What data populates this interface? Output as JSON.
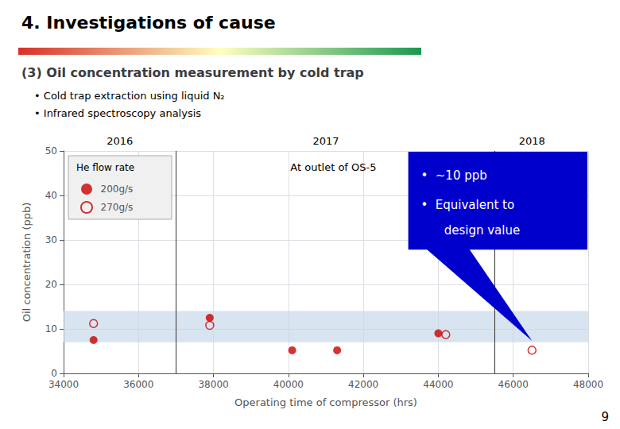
{
  "chart_data": {
    "type": "scatter",
    "title": "4. Investigations of cause",
    "subtitle": "(3) Oil concentration measurement by cold trap",
    "bullets": [
      "• Cold trap extraction using liquid N₂",
      "• Infrared spectroscopy analysis"
    ],
    "xlabel": "Operating time of compressor (hrs)",
    "ylabel": "Oil concentration (ppb)",
    "xlim": [
      34000,
      48000
    ],
    "ylim": [
      0,
      50
    ],
    "xticks": [
      34000,
      36000,
      38000,
      40000,
      42000,
      44000,
      46000,
      48000
    ],
    "yticks": [
      0,
      10,
      20,
      30,
      40,
      50
    ],
    "grid": true,
    "legend": "upper left",
    "legend_title": "He flow rate",
    "series": [
      {
        "name": "200g/s",
        "color": "#cc0000",
        "marker": "filled_circle",
        "values": [
          [
            34800,
            7.5
          ],
          [
            37900,
            12.5
          ],
          [
            40100,
            5.2
          ],
          [
            41300,
            5.2
          ],
          [
            44000,
            9.0
          ]
        ]
      },
      {
        "name": "270g/s",
        "color": "#cc0000",
        "marker": "open_circle",
        "values": [
          [
            34800,
            11.2
          ],
          [
            37900,
            10.8
          ],
          [
            44200,
            8.7
          ],
          [
            46500,
            5.2
          ]
        ]
      }
    ],
    "band": {
      "range": [
        7,
        14
      ],
      "color": "#c8d9e8"
    },
    "year_lines": [
      37000,
      45500
    ],
    "year_labels": [
      {
        "text": "2016",
        "x": 35500
      },
      {
        "text": "2017",
        "x": 41000
      },
      {
        "text": "2018",
        "x": 46500
      }
    ],
    "annotations": [
      {
        "text": "At outlet of OS-5",
        "x": 41200,
        "y": 47.5
      }
    ],
    "callout": [
      "•  ~10 ppb",
      "•  Equivalent to",
      "design value"
    ],
    "page_label": "9"
  }
}
